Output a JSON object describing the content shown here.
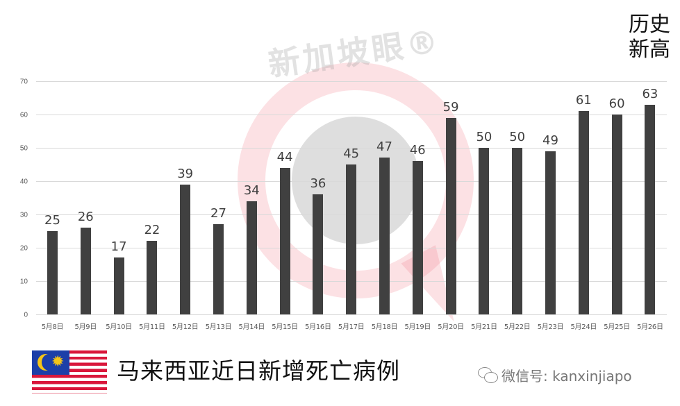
{
  "chart_data": {
    "type": "bar",
    "title": "马来西亚近日新增死亡病例",
    "xlabel": "",
    "ylabel": "",
    "ylim": [
      0,
      70
    ],
    "yticks": [
      0,
      10,
      20,
      30,
      40,
      50,
      60,
      70
    ],
    "grid": true,
    "legend": "none",
    "categories": [
      "5月8日",
      "5月9日",
      "5月10日",
      "5月11日",
      "5月12日",
      "5月13日",
      "5月14日",
      "5月15日",
      "5月16日",
      "5月17日",
      "5月18日",
      "5月19日",
      "5月20日",
      "5月21日",
      "5月22日",
      "5月23日",
      "5月24日",
      "5月25日",
      "5月26日"
    ],
    "values": [
      25,
      26,
      17,
      22,
      39,
      27,
      34,
      44,
      36,
      45,
      47,
      46,
      59,
      50,
      50,
      49,
      61,
      60,
      63
    ],
    "bar_color": "#404040",
    "annotations": [
      {
        "text": "历史新高",
        "target": "5月26日"
      }
    ]
  },
  "annotation": {
    "line1": "历史",
    "line2": "新高"
  },
  "footer": {
    "title": "马来西亚近日新增死亡病例",
    "flag_icon": "malaysia-flag",
    "wechat_icon": "wechat-icon",
    "wechat_label": "微信号: kanxinjiapo"
  },
  "watermark": {
    "text": "新加坡眼®"
  }
}
